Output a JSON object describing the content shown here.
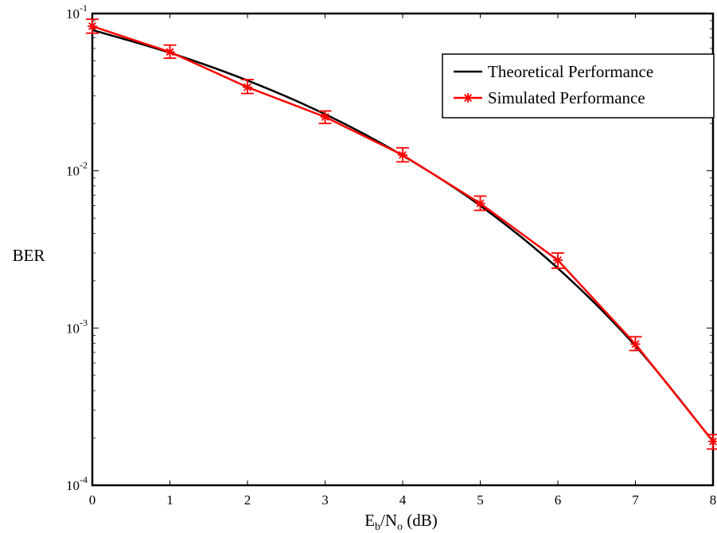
{
  "chart_data": {
    "type": "line",
    "xlabel": {
      "base": "E",
      "sub1": "b",
      "mid": "/N",
      "sub2": "o",
      "tail": " (dB)"
    },
    "ylabel": "BER",
    "xlim": [
      0,
      8
    ],
    "ylim": [
      0.0001,
      0.1
    ],
    "yscale": "log",
    "grid": false,
    "legend_position": "top-right",
    "x_ticks": [
      "0",
      "1",
      "2",
      "3",
      "4",
      "5",
      "6",
      "7",
      "8"
    ],
    "y_ticks": [
      {
        "base": "10",
        "exp": "-1",
        "value": 0.1
      },
      {
        "base": "10",
        "exp": "-2",
        "value": 0.01
      },
      {
        "base": "10",
        "exp": "-3",
        "value": 0.001
      },
      {
        "base": "10",
        "exp": "-4",
        "value": 0.0001
      }
    ],
    "series": [
      {
        "name": "Theoretical Performance",
        "color": "#000000",
        "marker": "none",
        "x": [
          0,
          1,
          2,
          3,
          4,
          5,
          6,
          7,
          8
        ],
        "y": [
          0.0786,
          0.0563,
          0.0375,
          0.0229,
          0.0125,
          0.006,
          0.0024,
          0.00077,
          0.00019
        ]
      },
      {
        "name": "Simulated Performance",
        "color": "#ff0000",
        "marker": "star",
        "x": [
          0,
          1,
          2,
          3,
          4,
          5,
          6,
          7,
          8
        ],
        "y": [
          0.083,
          0.057,
          0.034,
          0.022,
          0.0126,
          0.0062,
          0.0027,
          0.00079,
          0.00019
        ],
        "err_low": [
          0.075,
          0.052,
          0.031,
          0.02,
          0.0114,
          0.0056,
          0.0024,
          0.00072,
          0.00017
        ],
        "err_high": [
          0.092,
          0.063,
          0.038,
          0.024,
          0.014,
          0.0069,
          0.003,
          0.00088,
          0.00021
        ]
      }
    ]
  }
}
